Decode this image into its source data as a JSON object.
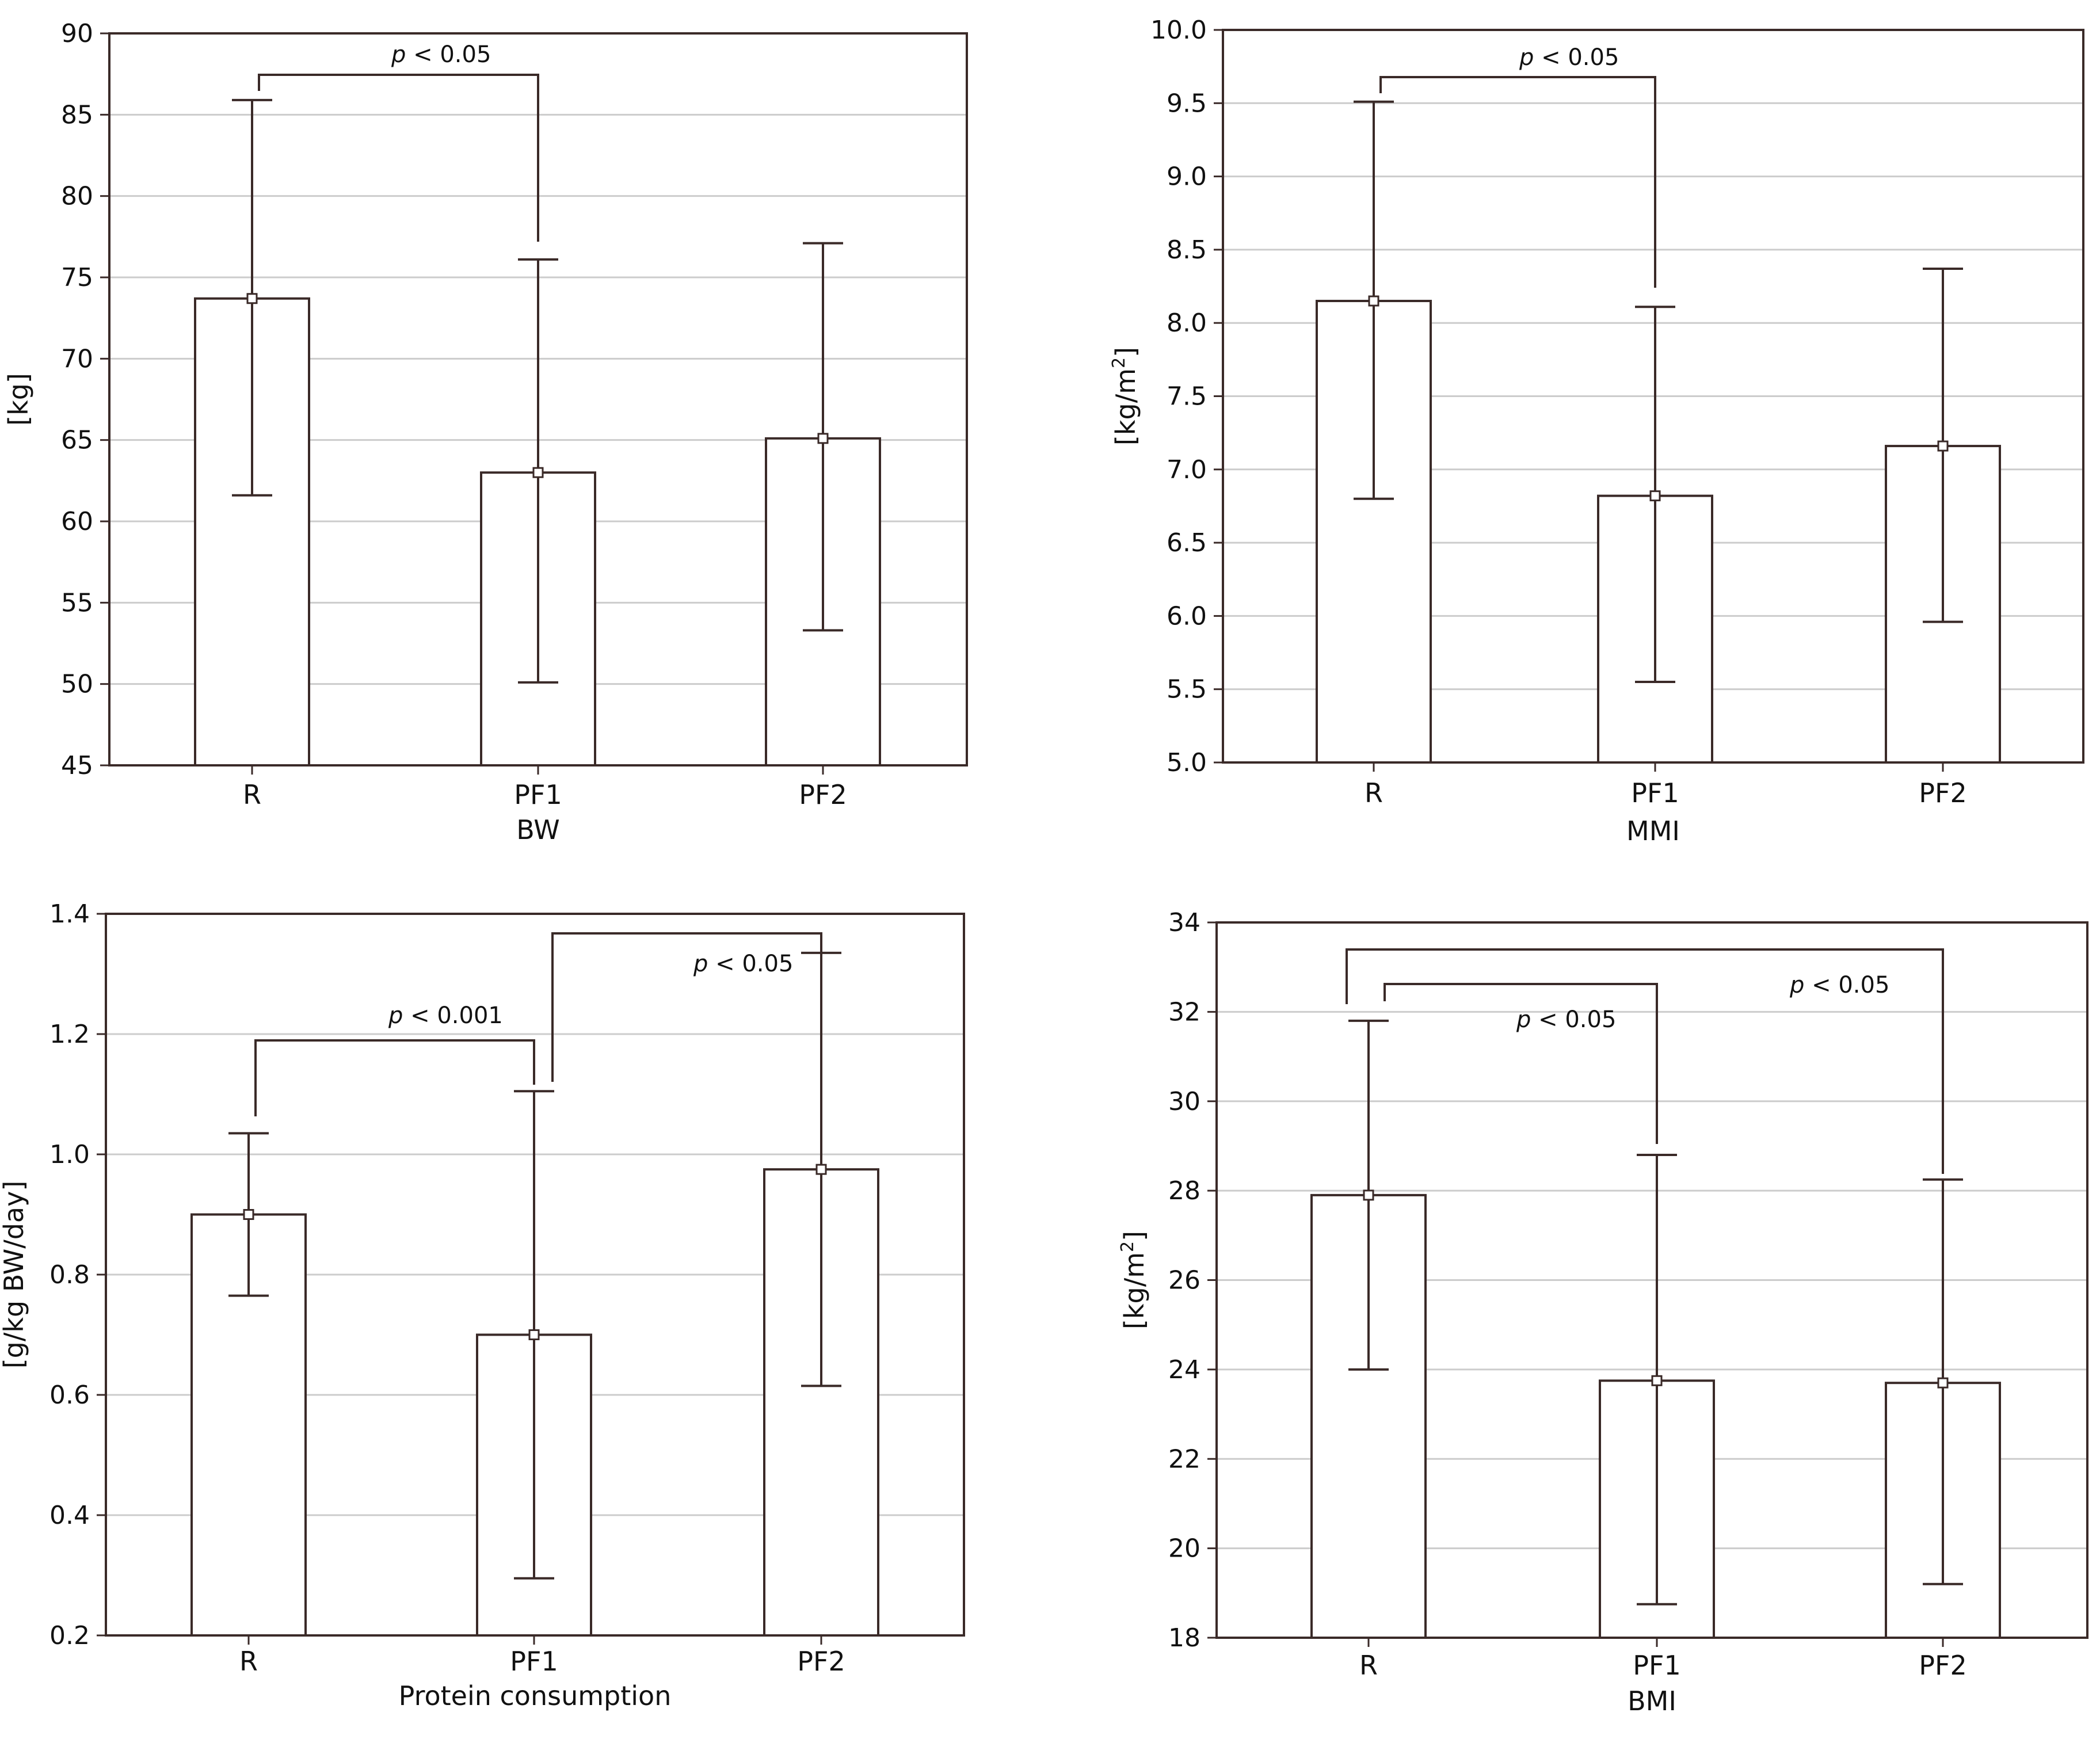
{
  "chart_data": [
    {
      "id": "bw",
      "type": "bar",
      "xlabel": "BW",
      "ylabel": "[kg]",
      "ylim": [
        45,
        90
      ],
      "yticks": [
        "45",
        "50",
        "55",
        "60",
        "65",
        "70",
        "75",
        "80",
        "85",
        "90"
      ],
      "categories": [
        "R",
        "PF1",
        "PF2"
      ],
      "values": [
        73.7,
        63.0,
        65.1
      ],
      "error_low": [
        61.6,
        50.1,
        53.3
      ],
      "error_high": [
        85.9,
        76.1,
        77.1
      ],
      "comparisons": [
        {
          "from": 0,
          "to": 1,
          "label_p": "p",
          "label_rest": " < 0.05",
          "level": 0
        }
      ]
    },
    {
      "id": "mmi",
      "type": "bar",
      "xlabel": "MMI",
      "ylabel": "[kg/m",
      "ylabel_sup": "2",
      "ylabel_end": "]",
      "ylim": [
        5.0,
        10.0
      ],
      "yticks": [
        "5.0",
        "5.5",
        "6.0",
        "6.5",
        "7.0",
        "7.5",
        "8.0",
        "8.5",
        "9.0",
        "9.5",
        "10.0"
      ],
      "categories": [
        "R",
        "PF1",
        "PF2"
      ],
      "values": [
        8.15,
        6.82,
        7.16
      ],
      "error_low": [
        6.8,
        5.55,
        5.96
      ],
      "error_high": [
        9.51,
        8.11,
        8.37
      ],
      "comparisons": [
        {
          "from": 0,
          "to": 1,
          "label_p": "p",
          "label_rest": " < 0.05",
          "level": 0
        }
      ]
    },
    {
      "id": "protein",
      "type": "bar",
      "xlabel": "Protein consumption",
      "ylabel": "[g/kg BW/day]",
      "ylim": [
        0.2,
        1.4
      ],
      "yticks": [
        "0.2",
        "0.4",
        "0.6",
        "0.8",
        "1.0",
        "1.2",
        "1.4"
      ],
      "categories": [
        "R",
        "PF1",
        "PF2"
      ],
      "values": [
        0.9,
        0.7,
        0.975
      ],
      "error_low": [
        0.765,
        0.295,
        0.615
      ],
      "error_high": [
        1.035,
        1.105,
        1.335
      ],
      "comparisons": [
        {
          "from": 0,
          "to": 1,
          "label_p": "p",
          "label_rest": " < 0.001",
          "level": 0
        },
        {
          "from": 1,
          "to": 2,
          "label_p": "p",
          "label_rest": " < 0.05",
          "level": 1
        }
      ]
    },
    {
      "id": "bmi",
      "type": "bar",
      "xlabel": "BMI",
      "ylabel": "[kg/m",
      "ylabel_sup": "2",
      "ylabel_end": "]",
      "ylim": [
        18,
        34
      ],
      "yticks": [
        "18",
        "20",
        "22",
        "24",
        "26",
        "28",
        "30",
        "32",
        "34"
      ],
      "categories": [
        "R",
        "PF1",
        "PF2"
      ],
      "values": [
        27.9,
        23.75,
        23.7
      ],
      "error_low": [
        24.0,
        18.75,
        19.2
      ],
      "error_high": [
        31.8,
        28.8,
        28.25
      ],
      "comparisons": [
        {
          "from": 0,
          "to": 1,
          "label_p": "p",
          "label_rest": " < 0.05",
          "level": 0
        },
        {
          "from": 0,
          "to": 2,
          "label_p": "p",
          "label_rest": " < 0.05",
          "level": 1
        }
      ]
    }
  ]
}
